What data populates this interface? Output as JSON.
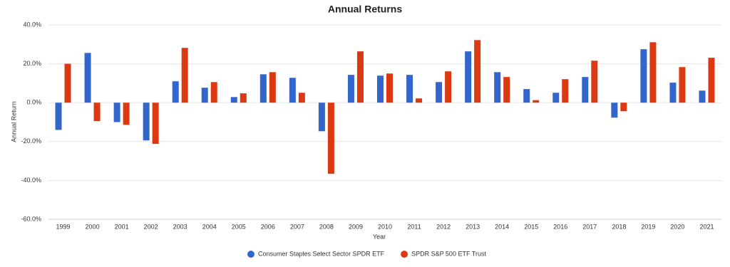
{
  "chart_data": {
    "type": "bar",
    "title": "Annual Returns",
    "x_label": "Year",
    "y_label": "Annual Return",
    "categories": [
      "1999",
      "2000",
      "2001",
      "2002",
      "2003",
      "2004",
      "2005",
      "2006",
      "2007",
      "2008",
      "2009",
      "2010",
      "2011",
      "2012",
      "2013",
      "2014",
      "2015",
      "2016",
      "2017",
      "2018",
      "2019",
      "2020",
      "2021"
    ],
    "series": [
      {
        "name": "Consumer Staples Select Sector SPDR ETF",
        "color": "#3366cc",
        "values": [
          -14,
          25.6,
          -10,
          -19.4,
          11,
          7.7,
          2.9,
          14.6,
          12.8,
          -14.7,
          14.3,
          13.9,
          14.3,
          10.6,
          26.4,
          15.7,
          7,
          5.1,
          13.2,
          -7.7,
          27.5,
          10.3,
          6.2
        ]
      },
      {
        "name": "SPDR S&P 500 ETF Trust",
        "color": "#dc3912",
        "values": [
          20,
          -9.5,
          -11.4,
          -21.2,
          28.2,
          10.6,
          4.8,
          15.7,
          5.1,
          -36.6,
          26.4,
          15,
          2.2,
          16.1,
          32.2,
          13.2,
          1.3,
          12.1,
          21.6,
          -4.4,
          31.1,
          18.3,
          23.1
        ]
      }
    ],
    "ylim": [
      -60,
      40
    ],
    "yticks": [
      {
        "value": -60,
        "label": "-60.0%"
      },
      {
        "value": -40,
        "label": "-40.0%"
      },
      {
        "value": -20,
        "label": "-20.0%"
      },
      {
        "value": 0,
        "label": "0.0%"
      },
      {
        "value": 20,
        "label": "20.0%"
      },
      {
        "value": 40,
        "label": "40.0%"
      }
    ],
    "grid": true
  }
}
